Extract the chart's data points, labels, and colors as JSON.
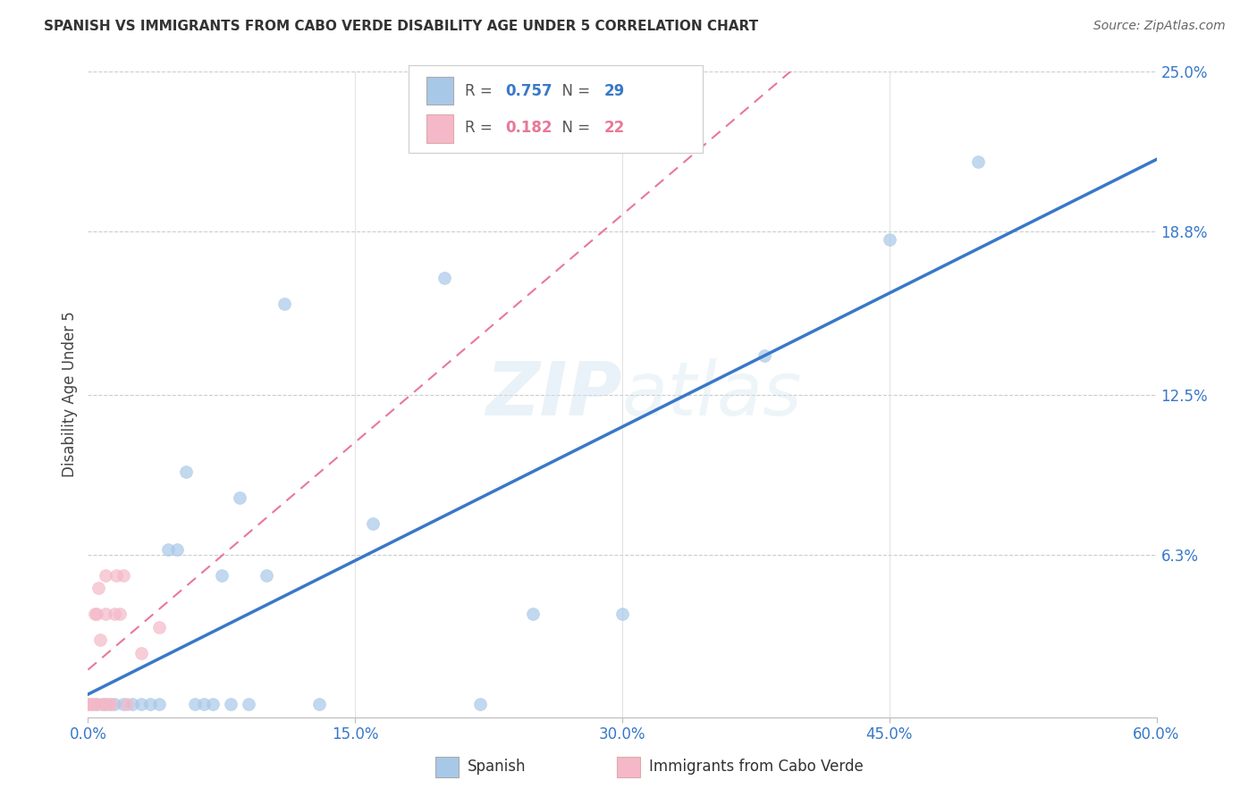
{
  "title": "SPANISH VS IMMIGRANTS FROM CABO VERDE DISABILITY AGE UNDER 5 CORRELATION CHART",
  "source": "Source: ZipAtlas.com",
  "ylabel_label": "Disability Age Under 5",
  "xlim": [
    0.0,
    0.6
  ],
  "ylim": [
    0.0,
    0.25
  ],
  "xticks": [
    0.0,
    0.15,
    0.3,
    0.45,
    0.6
  ],
  "xtick_labels": [
    "0.0%",
    "15.0%",
    "30.0%",
    "45.0%",
    "60.0%"
  ],
  "ytick_labels_right": [
    "6.3%",
    "12.5%",
    "18.8%",
    "25.0%"
  ],
  "yticks_right": [
    0.063,
    0.125,
    0.188,
    0.25
  ],
  "watermark": "ZIPatlas",
  "legend": {
    "R1": "0.757",
    "N1": "29",
    "R2": "0.182",
    "N2": "22"
  },
  "blue_color": "#a8c8e8",
  "pink_color": "#f4b8c8",
  "blue_line_color": "#3878c8",
  "pink_line_color": "#e87898",
  "marker_size": 100,
  "blue_points_x": [
    0.005,
    0.01,
    0.015,
    0.02,
    0.025,
    0.03,
    0.035,
    0.04,
    0.045,
    0.05,
    0.055,
    0.06,
    0.065,
    0.07,
    0.075,
    0.08,
    0.085,
    0.09,
    0.1,
    0.11,
    0.13,
    0.16,
    0.2,
    0.22,
    0.25,
    0.3,
    0.38,
    0.45,
    0.5
  ],
  "blue_points_y": [
    0.005,
    0.005,
    0.005,
    0.005,
    0.005,
    0.005,
    0.005,
    0.005,
    0.065,
    0.065,
    0.095,
    0.005,
    0.005,
    0.005,
    0.055,
    0.005,
    0.085,
    0.005,
    0.055,
    0.16,
    0.005,
    0.075,
    0.17,
    0.005,
    0.04,
    0.04,
    0.14,
    0.185,
    0.215
  ],
  "pink_points_x": [
    0.0,
    0.0,
    0.002,
    0.003,
    0.004,
    0.005,
    0.005,
    0.006,
    0.007,
    0.008,
    0.009,
    0.01,
    0.01,
    0.012,
    0.013,
    0.015,
    0.016,
    0.018,
    0.02,
    0.022,
    0.03,
    0.04
  ],
  "pink_points_y": [
    0.005,
    0.005,
    0.005,
    0.005,
    0.04,
    0.005,
    0.04,
    0.05,
    0.03,
    0.005,
    0.005,
    0.04,
    0.055,
    0.005,
    0.005,
    0.04,
    0.055,
    0.04,
    0.055,
    0.005,
    0.025,
    0.035
  ]
}
